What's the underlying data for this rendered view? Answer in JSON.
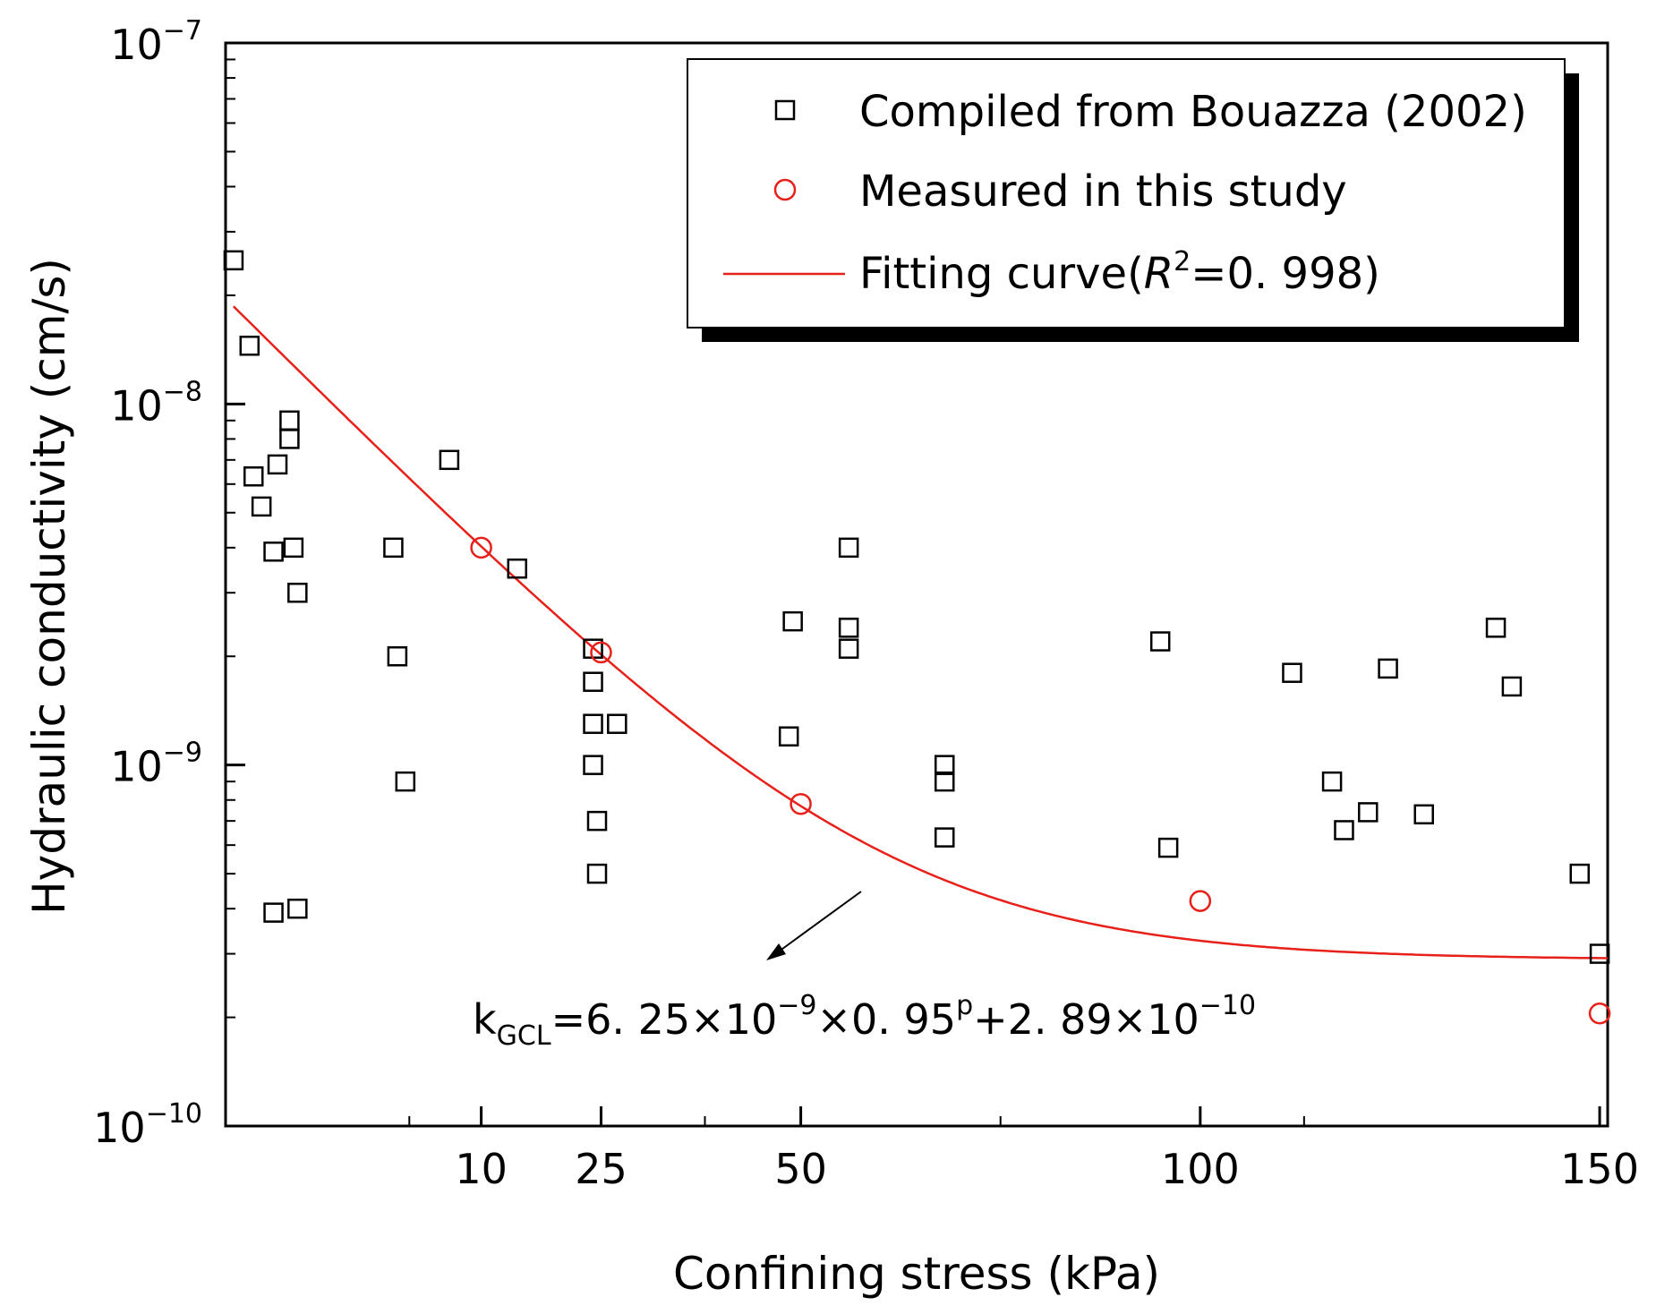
{
  "chart_data": {
    "type": "scatter",
    "xlabel": "Confining stress (kPa)",
    "ylabel": "Hydraulic conductivity (cm/s)",
    "xlim": [
      -22,
      151
    ],
    "ylim_log10": [
      -10,
      -7
    ],
    "x_ticks": [
      {
        "value": 10,
        "label": "10"
      },
      {
        "value": 25,
        "label": "25"
      },
      {
        "value": 50,
        "label": "50"
      },
      {
        "value": 100,
        "label": "100"
      },
      {
        "value": 150,
        "label": "150"
      }
    ],
    "y_ticks": [
      {
        "exp": -10,
        "base": "10",
        "sup": "−10"
      },
      {
        "exp": -9,
        "base": "10",
        "sup": "−9"
      },
      {
        "exp": -8,
        "base": "10",
        "sup": "−8"
      },
      {
        "exp": -7,
        "base": "10",
        "sup": "−7"
      }
    ],
    "series": [
      {
        "name": "Compiled from Bouazza (2002)",
        "marker": "square",
        "color": "#000000",
        "points": [
          [
            -21,
            2.5e-08
          ],
          [
            -19,
            1.45e-08
          ],
          [
            -18.5,
            6.3e-09
          ],
          [
            -17.5,
            5.2e-09
          ],
          [
            -16,
            3.9e-09
          ],
          [
            -15.5,
            6.8e-09
          ],
          [
            -14,
            9e-09
          ],
          [
            -14,
            8e-09
          ],
          [
            -13.5,
            4e-09
          ],
          [
            -13,
            3e-09
          ],
          [
            -16,
            3.9e-10
          ],
          [
            -13,
            4e-10
          ],
          [
            -1,
            4e-09
          ],
          [
            -0.5,
            2e-09
          ],
          [
            0.5,
            9e-10
          ],
          [
            6,
            7e-09
          ],
          [
            14.5,
            3.5e-09
          ],
          [
            24,
            2.1e-09
          ],
          [
            24,
            1.7e-09
          ],
          [
            24,
            1.3e-09
          ],
          [
            24,
            1e-09
          ],
          [
            24.5,
            7e-10
          ],
          [
            24.5,
            5e-10
          ],
          [
            27,
            1.3e-09
          ],
          [
            48.5,
            1.2e-09
          ],
          [
            49,
            2.5e-09
          ],
          [
            56,
            4e-09
          ],
          [
            56,
            2.4e-09
          ],
          [
            56,
            2.1e-09
          ],
          [
            68,
            1e-09
          ],
          [
            68,
            9e-10
          ],
          [
            68,
            6.3e-10
          ],
          [
            95,
            2.2e-09
          ],
          [
            96,
            5.9e-10
          ],
          [
            111.5,
            1.8e-09
          ],
          [
            116.5,
            9e-10
          ],
          [
            118,
            6.6e-10
          ],
          [
            121,
            7.4e-10
          ],
          [
            123.5,
            1.85e-09
          ],
          [
            128,
            7.3e-10
          ],
          [
            137,
            2.4e-09
          ],
          [
            139,
            1.65e-09
          ],
          [
            147.5,
            5e-10
          ],
          [
            150,
            3e-10
          ]
        ]
      },
      {
        "name": "Measured in this study",
        "marker": "circle",
        "color": "#e8201a",
        "points": [
          [
            10,
            4e-09
          ],
          [
            25,
            2.05e-09
          ],
          [
            50,
            7.8e-10
          ],
          [
            100,
            4.2e-10
          ],
          [
            150,
            2.05e-10
          ]
        ]
      },
      {
        "name": "Fitting curve",
        "type": "line",
        "color": "#e8201a",
        "model": {
          "a": 6.25e-09,
          "b": 0.95,
          "c": 2.89e-10
        },
        "x_range": [
          -21,
          151
        ]
      }
    ],
    "legend": {
      "position": "top-right",
      "items": [
        {
          "label": "Compiled from Bouazza (2002)"
        },
        {
          "label": "Measured in this study"
        },
        {
          "label_prefix": "Fitting curve(",
          "label_var": "R",
          "label_sup": "2",
          "label_suffix": "=0. 998)"
        }
      ]
    },
    "annotation": {
      "k": "k",
      "sub": "GCL",
      "part1": "=6. 25×10",
      "sup1": "−9",
      "part2": "×0. 95",
      "sup2": "p",
      "part3": "+2. 89×10",
      "sup3": "−10"
    }
  }
}
